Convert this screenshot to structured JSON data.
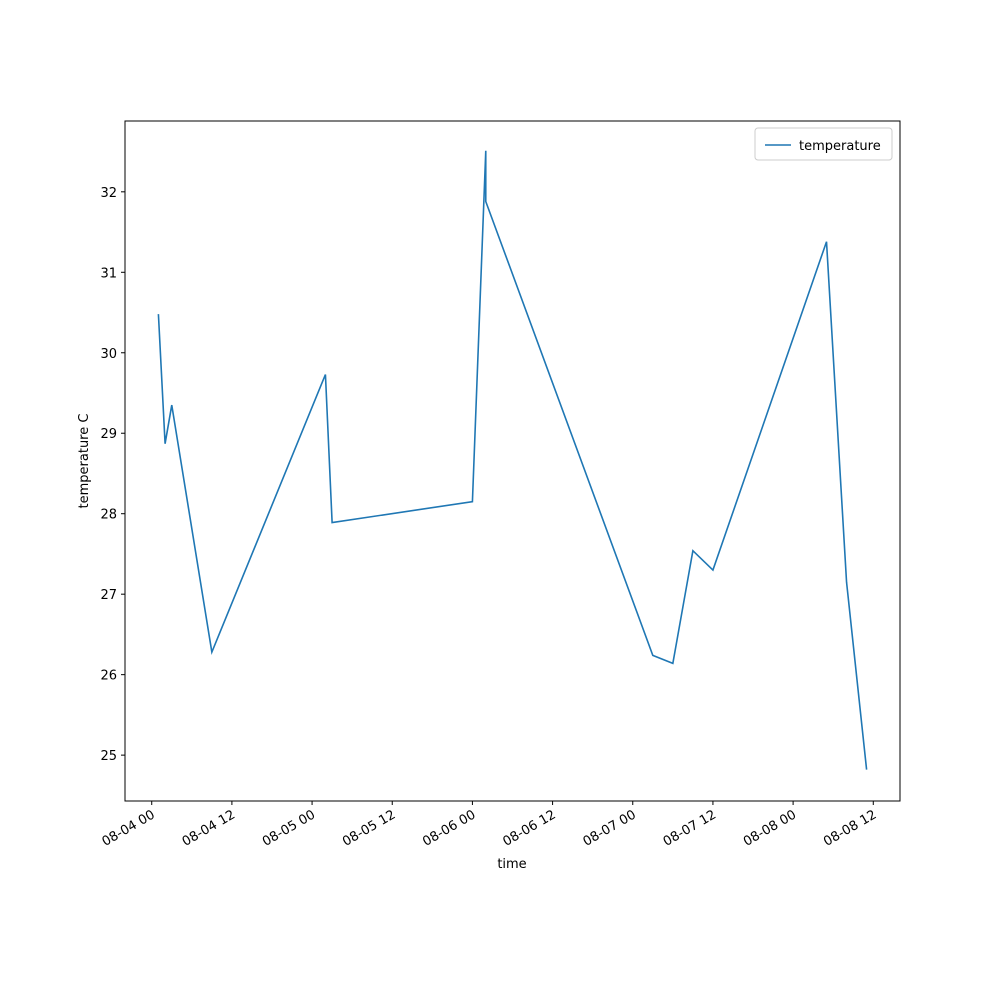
{
  "chart_data": {
    "type": "line",
    "xlabel": "time",
    "ylabel": "temperature C",
    "x": [
      "08-04 01",
      "08-04 02",
      "08-04 03",
      "08-04 09",
      "08-05 02",
      "08-05 03",
      "08-06 00",
      "08-06 02",
      "08-06 02",
      "08-07 03",
      "08-07 06",
      "08-07 09",
      "08-07 12",
      "08-08 05",
      "08-08 08",
      "08-08 11"
    ],
    "series": [
      {
        "name": "temperature",
        "color": "#1f77b4",
        "values": [
          30.48,
          28.87,
          29.35,
          26.28,
          29.73,
          27.89,
          28.15,
          32.51,
          31.88,
          26.24,
          26.14,
          27.54,
          27.3,
          31.38,
          27.15,
          24.82
        ]
      }
    ],
    "xlim": [
      "08-03 20",
      "08-08 16"
    ],
    "xticks": [
      "08-04 00",
      "08-04 12",
      "08-05 00",
      "08-05 12",
      "08-06 00",
      "08-06 12",
      "08-07 00",
      "08-07 12",
      "08-08 00",
      "08-08 12"
    ],
    "ylim": [
      24.43,
      32.88
    ],
    "yticks": [
      25,
      26,
      27,
      28,
      29,
      30,
      31,
      32
    ],
    "legend": "upper right",
    "grid": false
  }
}
